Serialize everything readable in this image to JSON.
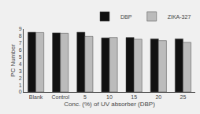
{
  "chart_data": {
    "type": "bar",
    "categories": [
      "Blank",
      "Control",
      "5",
      "10",
      "15",
      "20",
      "25"
    ],
    "series": [
      {
        "name": "DBP",
        "color": "#111111",
        "values": [
          8.55,
          8.45,
          8.55,
          7.75,
          7.8,
          7.6,
          7.6
        ]
      },
      {
        "name": "ZIKA-327",
        "color": "#bbbbbb",
        "values": [
          8.5,
          8.4,
          7.95,
          7.8,
          7.55,
          7.35,
          7.1
        ]
      }
    ],
    "xlabel": "Conc. (%) of UV absorber (DBP)",
    "ylabel": "PC Number",
    "ylim": [
      0,
      9
    ],
    "yticks": [
      0,
      1,
      2,
      3,
      4,
      5,
      6,
      7,
      8,
      9
    ],
    "grid": false,
    "legend": "upper right"
  }
}
